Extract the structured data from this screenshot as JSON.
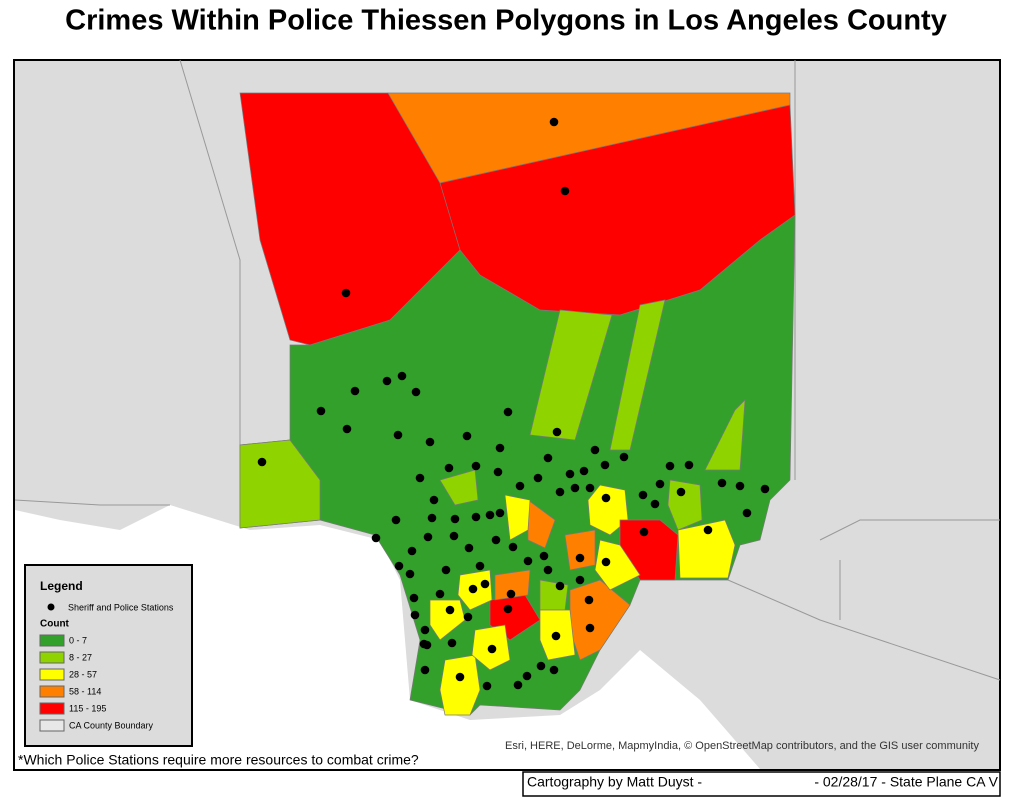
{
  "title": "Crimes Within Police Thiessen Polygons in Los Angeles County",
  "legend": {
    "title": "Legend",
    "stations": "Sheriff and Police Stations",
    "count_title": "Count",
    "classes": [
      {
        "label": "0 - 7",
        "color": "#33a02c"
      },
      {
        "label": "8 - 27",
        "color": "#8fd400"
      },
      {
        "label": "28 - 57",
        "color": "#ffff00"
      },
      {
        "label": "58 - 114",
        "color": "#ff8000"
      },
      {
        "label": "115 - 195",
        "color": "#ff0000"
      }
    ],
    "boundary": "CA County Boundary"
  },
  "note": "*Which Police Stations require more resources to combat crime?",
  "attribution": "Esri, HERE, DeLorme, MapmyIndia, © OpenStreetMap contributors, and the GIS user community",
  "footer": {
    "left": "Cartography by Matt Duyst -",
    "right": "- 02/28/17 - State Plane CA V"
  }
}
